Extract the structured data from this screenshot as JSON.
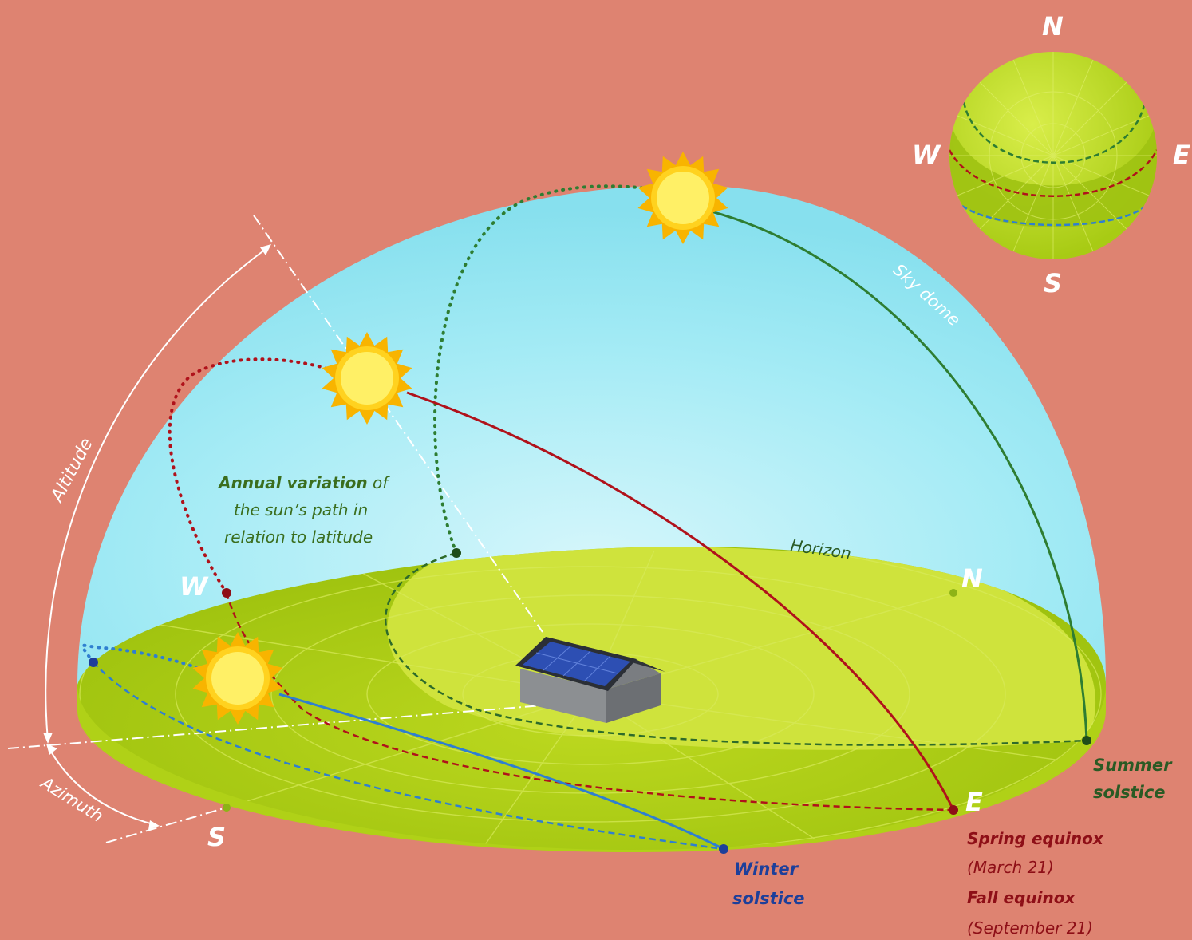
{
  "compass": {
    "n": "N",
    "s": "S",
    "e": "E",
    "w": "W"
  },
  "labels": {
    "altitude": "Altitude",
    "azimuth": "Azimuth",
    "sky_dome": "Sky dome",
    "horizon": "Horizon",
    "annual_bold": "Annual variation",
    "annual_rest1": " of",
    "annual_line2": "the sun’s path in",
    "annual_line3": "relation to latitude"
  },
  "paths": {
    "summer": {
      "line1": "Summer",
      "line2": "solstice"
    },
    "winter": {
      "line1": "Winter",
      "line2": "solstice"
    },
    "equinox": {
      "spring": "Spring equinox",
      "spring_date": "(March 21)",
      "fall": "Fall equinox",
      "fall_date": "(September 21)"
    }
  },
  "colors": {
    "background": "#de8371",
    "sky": "#8fe3f0",
    "ground": "#a5c80f",
    "ground_light": "#cde23a",
    "summer": "#2e7d32",
    "equinox": "#b0121b",
    "winter": "#2f7fd0",
    "sun": "#fff066",
    "sun_rays": "#f8b400"
  }
}
